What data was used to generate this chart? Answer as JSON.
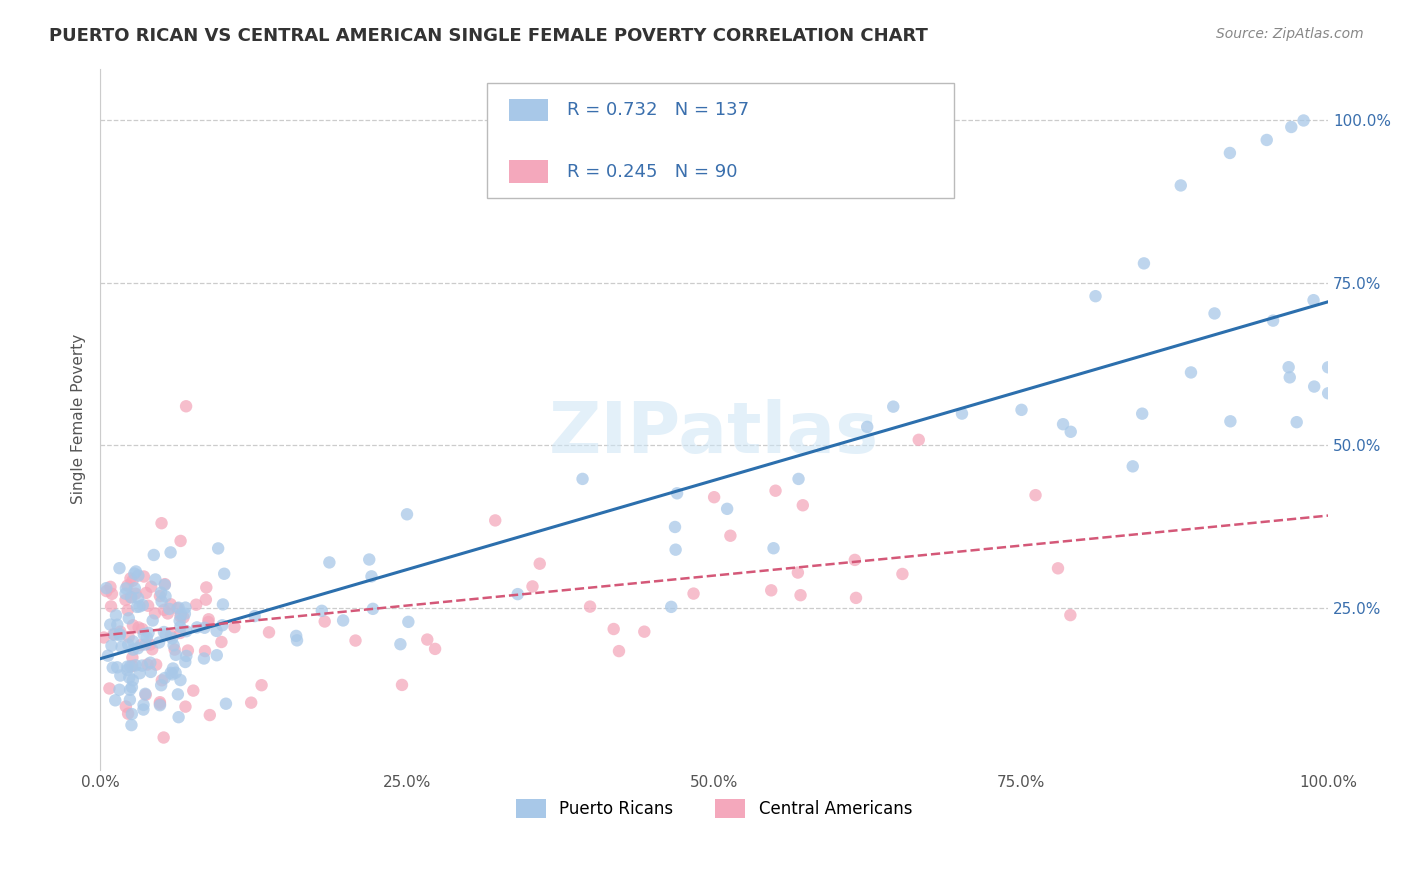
{
  "title": "PUERTO RICAN VS CENTRAL AMERICAN SINGLE FEMALE POVERTY CORRELATION CHART",
  "source": "Source: ZipAtlas.com",
  "ylabel": "Single Female Poverty",
  "xlim": [
    0,
    1
  ],
  "ylim": [
    0,
    1.08
  ],
  "x_ticks": [
    0.0,
    0.25,
    0.5,
    0.75,
    1.0
  ],
  "x_tick_labels": [
    "0.0%",
    "25.0%",
    "50.0%",
    "75.0%",
    "100.0%"
  ],
  "y_ticks": [
    0.25,
    0.5,
    0.75,
    1.0
  ],
  "y_tick_labels": [
    "25.0%",
    "50.0%",
    "75.0%",
    "100.0%"
  ],
  "blue_color": "#a8c8e8",
  "pink_color": "#f4a8bc",
  "blue_line_color": "#2c6fad",
  "pink_line_color": "#d45878",
  "text_color": "#3a6fad",
  "blue_R": 0.732,
  "blue_N": 137,
  "pink_R": 0.245,
  "pink_N": 90,
  "watermark": "ZIPatlas",
  "legend_label_blue": "Puerto Ricans",
  "legend_label_pink": "Central Americans",
  "background_color": "#ffffff",
  "grid_color": "#cccccc"
}
